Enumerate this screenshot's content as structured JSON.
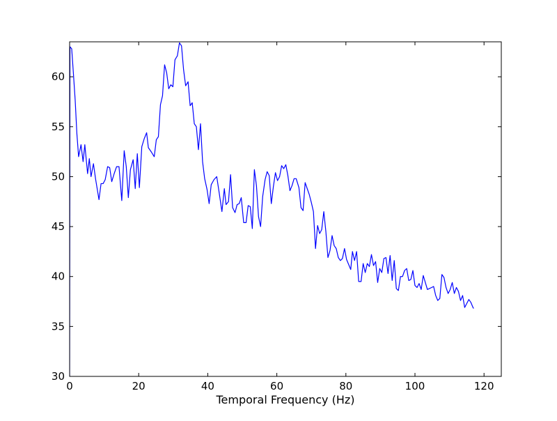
{
  "chart_data": {
    "type": "line",
    "title": "",
    "xlabel": "Temporal Frequency (Hz)",
    "ylabel": "",
    "xlim": [
      0,
      125
    ],
    "ylim": [
      30,
      63.5
    ],
    "xticks": [
      0,
      20,
      40,
      60,
      80,
      100,
      120
    ],
    "yticks": [
      30,
      35,
      40,
      45,
      50,
      55,
      60
    ],
    "grid": false,
    "series": [
      {
        "color": "#0000ff",
        "points": [
          [
            0.0,
            30.0
          ],
          [
            0.1,
            63.0
          ],
          [
            0.6,
            62.8
          ],
          [
            1.1,
            60.3
          ],
          [
            1.6,
            57.7
          ],
          [
            2.1,
            54.3
          ],
          [
            2.6,
            52.0
          ],
          [
            3.3,
            53.2
          ],
          [
            3.9,
            51.5
          ],
          [
            4.4,
            53.2
          ],
          [
            5.2,
            50.3
          ],
          [
            5.7,
            51.8
          ],
          [
            6.2,
            50.0
          ],
          [
            6.9,
            51.3
          ],
          [
            7.5,
            49.8
          ],
          [
            8.5,
            47.7
          ],
          [
            9.1,
            49.3
          ],
          [
            9.7,
            49.3
          ],
          [
            10.3,
            49.7
          ],
          [
            11.0,
            51.0
          ],
          [
            11.6,
            50.9
          ],
          [
            12.2,
            49.5
          ],
          [
            12.9,
            50.3
          ],
          [
            13.6,
            51.0
          ],
          [
            14.3,
            51.0
          ],
          [
            15.1,
            47.6
          ],
          [
            15.8,
            52.6
          ],
          [
            16.4,
            51.0
          ],
          [
            17.0,
            47.9
          ],
          [
            17.6,
            50.7
          ],
          [
            18.4,
            51.7
          ],
          [
            19.0,
            48.8
          ],
          [
            19.6,
            52.3
          ],
          [
            20.2,
            48.9
          ],
          [
            20.9,
            53.0
          ],
          [
            21.6,
            53.8
          ],
          [
            22.3,
            54.4
          ],
          [
            22.8,
            52.9
          ],
          [
            23.6,
            52.5
          ],
          [
            24.5,
            52.0
          ],
          [
            25.1,
            53.7
          ],
          [
            25.7,
            54.0
          ],
          [
            26.3,
            57.2
          ],
          [
            26.9,
            58.1
          ],
          [
            27.5,
            61.2
          ],
          [
            28.1,
            60.4
          ],
          [
            28.7,
            58.8
          ],
          [
            29.3,
            59.2
          ],
          [
            29.9,
            59.0
          ],
          [
            30.5,
            61.7
          ],
          [
            31.2,
            62.1
          ],
          [
            31.8,
            63.4
          ],
          [
            32.4,
            63.1
          ],
          [
            33.0,
            60.7
          ],
          [
            33.6,
            59.1
          ],
          [
            34.3,
            59.5
          ],
          [
            34.9,
            57.1
          ],
          [
            35.5,
            57.4
          ],
          [
            36.1,
            55.3
          ],
          [
            36.7,
            55.0
          ],
          [
            37.3,
            52.7
          ],
          [
            37.9,
            55.3
          ],
          [
            38.5,
            51.5
          ],
          [
            39.1,
            49.8
          ],
          [
            39.8,
            48.7
          ],
          [
            40.4,
            47.3
          ],
          [
            41.0,
            49.2
          ],
          [
            41.8,
            49.7
          ],
          [
            42.6,
            50.0
          ],
          [
            43.3,
            48.4
          ],
          [
            44.1,
            46.5
          ],
          [
            44.8,
            48.8
          ],
          [
            45.3,
            47.2
          ],
          [
            46.0,
            47.5
          ],
          [
            46.6,
            50.2
          ],
          [
            47.2,
            46.9
          ],
          [
            47.9,
            46.4
          ],
          [
            48.5,
            47.2
          ],
          [
            49.1,
            47.3
          ],
          [
            49.7,
            47.9
          ],
          [
            50.4,
            45.4
          ],
          [
            51.1,
            45.4
          ],
          [
            51.7,
            47.1
          ],
          [
            52.3,
            47.0
          ],
          [
            52.9,
            44.8
          ],
          [
            53.5,
            50.7
          ],
          [
            54.1,
            49.1
          ],
          [
            54.7,
            46.0
          ],
          [
            55.3,
            45.0
          ],
          [
            55.9,
            48.0
          ],
          [
            56.6,
            49.7
          ],
          [
            57.2,
            50.5
          ],
          [
            57.8,
            50.1
          ],
          [
            58.4,
            47.3
          ],
          [
            59.0,
            49.0
          ],
          [
            59.6,
            50.4
          ],
          [
            60.2,
            49.6
          ],
          [
            60.8,
            50.0
          ],
          [
            61.4,
            51.1
          ],
          [
            62.0,
            50.8
          ],
          [
            62.6,
            51.2
          ],
          [
            63.2,
            50.1
          ],
          [
            63.8,
            48.6
          ],
          [
            64.4,
            49.1
          ],
          [
            65.0,
            49.8
          ],
          [
            65.6,
            49.8
          ],
          [
            66.4,
            48.9
          ],
          [
            67.0,
            46.9
          ],
          [
            67.6,
            46.6
          ],
          [
            68.2,
            49.4
          ],
          [
            68.8,
            48.8
          ],
          [
            69.4,
            48.2
          ],
          [
            70.0,
            47.4
          ],
          [
            70.6,
            46.5
          ],
          [
            71.2,
            42.8
          ],
          [
            71.8,
            45.1
          ],
          [
            72.4,
            44.3
          ],
          [
            73.0,
            44.7
          ],
          [
            73.6,
            46.5
          ],
          [
            74.2,
            44.5
          ],
          [
            74.8,
            41.9
          ],
          [
            75.4,
            42.6
          ],
          [
            76.0,
            44.1
          ],
          [
            76.6,
            43.1
          ],
          [
            77.2,
            42.8
          ],
          [
            77.8,
            41.9
          ],
          [
            78.4,
            41.6
          ],
          [
            79.0,
            41.8
          ],
          [
            79.6,
            42.8
          ],
          [
            80.2,
            41.7
          ],
          [
            80.8,
            41.2
          ],
          [
            81.4,
            40.7
          ],
          [
            81.9,
            42.5
          ],
          [
            82.5,
            41.6
          ],
          [
            83.1,
            42.5
          ],
          [
            83.7,
            39.5
          ],
          [
            84.4,
            39.5
          ],
          [
            85.0,
            41.3
          ],
          [
            85.6,
            40.4
          ],
          [
            86.2,
            41.3
          ],
          [
            86.8,
            41.0
          ],
          [
            87.4,
            42.2
          ],
          [
            88.0,
            41.1
          ],
          [
            88.6,
            41.5
          ],
          [
            89.2,
            39.4
          ],
          [
            89.8,
            40.8
          ],
          [
            90.4,
            40.4
          ],
          [
            91.0,
            41.8
          ],
          [
            91.6,
            41.9
          ],
          [
            92.2,
            40.3
          ],
          [
            92.8,
            42.1
          ],
          [
            93.4,
            39.6
          ],
          [
            94.0,
            41.6
          ],
          [
            94.6,
            38.8
          ],
          [
            95.2,
            38.6
          ],
          [
            95.8,
            40.0
          ],
          [
            96.4,
            40.0
          ],
          [
            97.0,
            40.6
          ],
          [
            97.6,
            40.8
          ],
          [
            98.2,
            39.6
          ],
          [
            98.8,
            39.7
          ],
          [
            99.4,
            40.6
          ],
          [
            100.0,
            39.1
          ],
          [
            100.6,
            38.9
          ],
          [
            101.2,
            39.3
          ],
          [
            101.8,
            38.7
          ],
          [
            102.4,
            40.1
          ],
          [
            103.0,
            39.4
          ],
          [
            103.6,
            38.7
          ],
          [
            104.2,
            38.8
          ],
          [
            104.8,
            38.9
          ],
          [
            105.4,
            39.0
          ],
          [
            106.0,
            38.1
          ],
          [
            106.6,
            37.6
          ],
          [
            107.2,
            37.8
          ],
          [
            107.8,
            40.2
          ],
          [
            108.4,
            39.9
          ],
          [
            109.0,
            38.9
          ],
          [
            109.6,
            38.3
          ],
          [
            110.2,
            38.7
          ],
          [
            110.8,
            39.4
          ],
          [
            111.4,
            38.3
          ],
          [
            112.0,
            38.9
          ],
          [
            112.6,
            38.5
          ],
          [
            113.2,
            37.6
          ],
          [
            113.8,
            38.1
          ],
          [
            114.4,
            36.9
          ],
          [
            115.0,
            37.3
          ],
          [
            115.6,
            37.7
          ],
          [
            116.2,
            37.4
          ],
          [
            116.8,
            36.9
          ],
          [
            117.0,
            36.8
          ]
        ]
      }
    ]
  }
}
